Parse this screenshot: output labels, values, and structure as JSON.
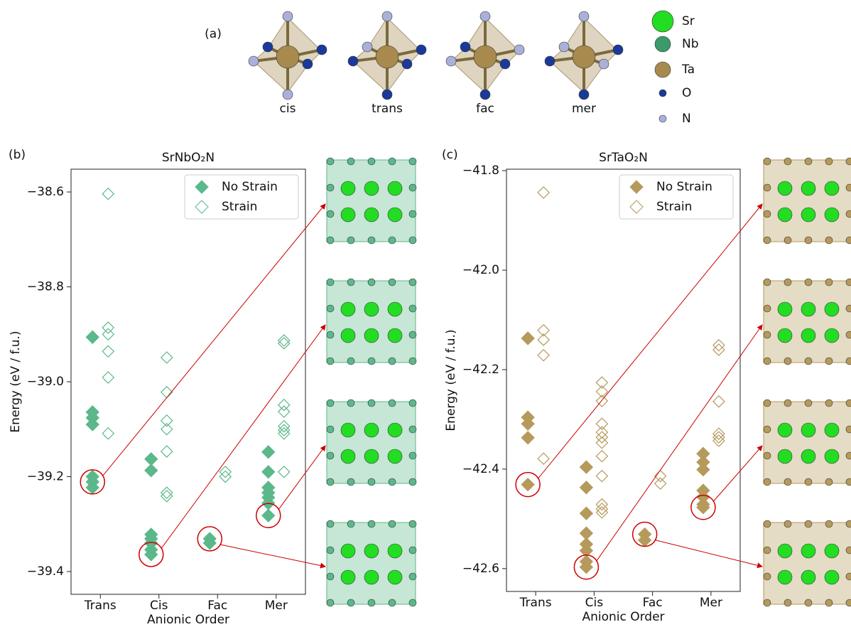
{
  "panel_a": {
    "label": "(a)",
    "octahedra": [
      "cis",
      "trans",
      "fac",
      "mer"
    ],
    "legend": [
      {
        "name": "Sr",
        "color": "#22dd22"
      },
      {
        "name": "Nb",
        "color": "#3a9a6a"
      },
      {
        "name": "Ta",
        "color": "#a88a4e"
      },
      {
        "name": "O",
        "color": "#1a3a9a"
      },
      {
        "name": "N",
        "color": "#aab0d8"
      }
    ]
  },
  "chart_data": [
    {
      "type": "scatter",
      "panel": "(b)",
      "title": "SrNbO₂N",
      "ylabel": "Energy (eV / f.u.)",
      "xlabel": "Anionic Order",
      "categories": [
        "Trans",
        "Cis",
        "Fac",
        "Mer"
      ],
      "ylim": [
        -39.448,
        -38.552
      ],
      "yticks": [
        {
          "value": -39.4,
          "label": "−39.4"
        },
        {
          "value": -39.2,
          "label": "−39.2"
        },
        {
          "value": -39.0,
          "label": "−39.0"
        },
        {
          "value": -38.8,
          "label": "−38.8"
        },
        {
          "value": -38.6,
          "label": "−38.6"
        }
      ],
      "legend": "upper right",
      "series": [
        {
          "name": "No Strain",
          "color": "#5cb88a",
          "filled": true,
          "x": [
            "Trans",
            "Trans",
            "Trans",
            "Trans",
            "Trans",
            "Trans",
            "Trans",
            "Cis",
            "Cis",
            "Cis",
            "Cis",
            "Cis",
            "Cis",
            "Cis",
            "Fac",
            "Fac",
            "Mer",
            "Mer",
            "Mer",
            "Mer",
            "Mer",
            "Mer",
            "Mer"
          ],
          "values": [
            -38.906,
            -39.064,
            -39.076,
            -39.09,
            -39.2,
            -39.211,
            -39.223,
            -39.163,
            -39.187,
            -39.322,
            -39.331,
            -39.34,
            -39.354,
            -39.364,
            -39.331,
            -39.34,
            -39.148,
            -39.19,
            -39.223,
            -39.234,
            -39.244,
            -39.256,
            -39.282
          ]
        },
        {
          "name": "Strain",
          "color": "#5cb88a",
          "filled": false,
          "x": [
            "Trans",
            "Trans",
            "Trans",
            "Trans",
            "Trans",
            "Trans",
            "Cis",
            "Cis",
            "Cis",
            "Cis",
            "Cis",
            "Cis",
            "Cis",
            "Fac",
            "Fac",
            "Mer",
            "Mer",
            "Mer",
            "Mer",
            "Mer",
            "Mer",
            "Mer",
            "Mer"
          ],
          "values": [
            -38.604,
            -38.886,
            -38.9,
            -38.936,
            -38.991,
            -39.109,
            -38.949,
            -39.022,
            -39.082,
            -39.1,
            -39.147,
            -39.234,
            -39.241,
            -39.19,
            -39.2,
            -38.913,
            -38.919,
            -39.049,
            -39.063,
            -39.094,
            -39.102,
            -39.109,
            -39.19
          ]
        }
      ]
    },
    {
      "type": "scatter",
      "panel": "(c)",
      "title": "SrTaO₂N",
      "ylabel": "Energy (eV / f.u.)",
      "xlabel": "Anionic Order",
      "categories": [
        "Trans",
        "Cis",
        "Fac",
        "Mer"
      ],
      "ylim": [
        -42.646,
        -41.797
      ],
      "yticks": [
        {
          "value": -42.6,
          "label": "−42.6"
        },
        {
          "value": -42.4,
          "label": "−42.4"
        },
        {
          "value": -42.2,
          "label": "−42.2"
        },
        {
          "value": -42.0,
          "label": "−42.0"
        },
        {
          "value": -41.8,
          "label": "−41.8"
        }
      ],
      "legend": "upper right",
      "series": [
        {
          "name": "No Strain",
          "color": "#b59a5c",
          "filled": true,
          "x": [
            "Trans",
            "Trans",
            "Trans",
            "Trans",
            "Trans",
            "Cis",
            "Cis",
            "Cis",
            "Cis",
            "Cis",
            "Cis",
            "Cis",
            "Cis",
            "Fac",
            "Fac",
            "Mer",
            "Mer",
            "Mer",
            "Mer",
            "Mer",
            "Mer",
            "Mer"
          ],
          "values": [
            -42.137,
            -42.296,
            -42.309,
            -42.337,
            -42.431,
            -42.396,
            -42.437,
            -42.489,
            -42.529,
            -42.551,
            -42.564,
            -42.586,
            -42.597,
            -42.531,
            -42.543,
            -42.369,
            -42.386,
            -42.401,
            -42.443,
            -42.456,
            -42.471,
            -42.477
          ]
        },
        {
          "name": "Strain",
          "color": "#b59a5c",
          "filled": false,
          "x": [
            "Trans",
            "Trans",
            "Trans",
            "Trans",
            "Trans",
            "Cis",
            "Cis",
            "Cis",
            "Cis",
            "Cis",
            "Cis",
            "Cis",
            "Cis",
            "Cis",
            "Cis",
            "Cis",
            "Cis",
            "Fac",
            "Fac",
            "Mer",
            "Mer",
            "Mer",
            "Mer",
            "Mer",
            "Mer"
          ],
          "values": [
            -41.844,
            -42.121,
            -42.14,
            -42.171,
            -42.379,
            -42.226,
            -42.244,
            -42.263,
            -42.309,
            -42.326,
            -42.336,
            -42.347,
            -42.374,
            -42.414,
            -42.471,
            -42.48,
            -42.487,
            -42.414,
            -42.429,
            -42.151,
            -42.16,
            -42.264,
            -42.329,
            -42.336,
            -42.343
          ]
        }
      ]
    }
  ]
}
